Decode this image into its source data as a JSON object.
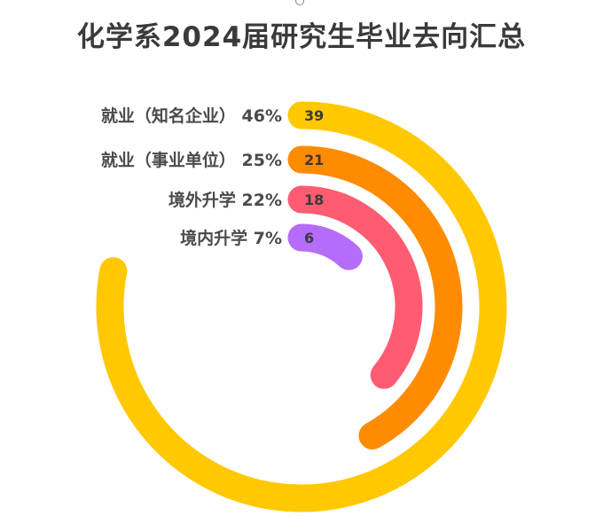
{
  "chart_data": {
    "type": "radial-bar",
    "title": "化学系2024届研究生毕业去向汇总",
    "max": 50,
    "series": [
      {
        "label": "就业（知名企业） 46%",
        "value": 39,
        "color": "#FFC800"
      },
      {
        "label": "就业（事业单位） 25%",
        "value": 21,
        "color": "#FF8C00"
      },
      {
        "label": "境外升学 22%",
        "value": 18,
        "color": "#FF5C72"
      },
      {
        "label": "境内升学 7%",
        "value": 6,
        "color": "#B66CFA"
      }
    ]
  }
}
